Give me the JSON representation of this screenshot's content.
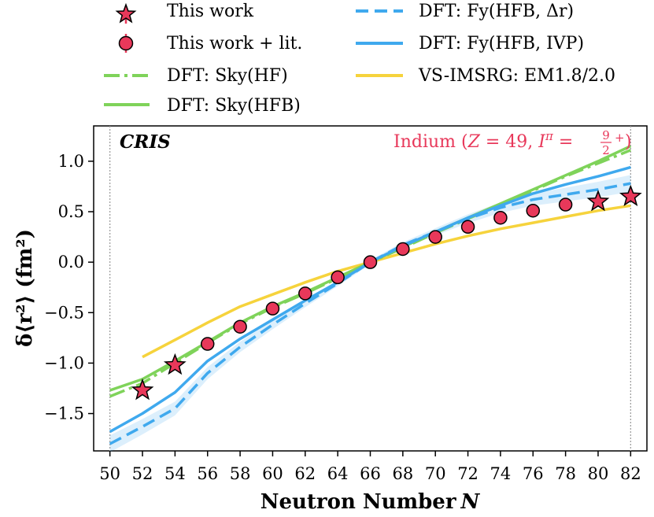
{
  "chart_data": {
    "type": "line",
    "xlabel": "Neutron Number",
    "xlabel_var": "N",
    "ylabel": "δ⟨r²⟩ (fm²)",
    "xlim": [
      49,
      83
    ],
    "ylim": [
      -1.87,
      1.35
    ],
    "x_ticks": [
      50,
      52,
      54,
      56,
      58,
      60,
      62,
      64,
      66,
      68,
      70,
      72,
      74,
      76,
      78,
      80,
      82
    ],
    "y_ticks": [
      -1.5,
      -1.0,
      -0.5,
      0.0,
      0.5,
      1.0
    ],
    "y_tick_labels": [
      "−1.5",
      "−1.0",
      "−0.5",
      "0.0",
      "0.5",
      "1.0"
    ],
    "vertical_reference_lines": [
      50,
      82
    ],
    "annotations": {
      "top_left": "CRIS",
      "top_right_prefix": "Indium (",
      "top_right_z": "Z",
      "top_right_eq": " = 49, ",
      "top_right_i": "I",
      "top_right_pi": "π",
      "top_right_eq2": " = ",
      "top_right_frac_num": "9",
      "top_right_frac_den": "2",
      "top_right_sup": "+",
      "top_right_close": ")"
    },
    "colors": {
      "this_work": "#e8385a",
      "blue": "#3fa9ee",
      "green": "#7fd35a",
      "yellow": "#f6d33c"
    },
    "series": [
      {
        "name": "DFT: Sky(HF)",
        "style": "dashdot",
        "color": "#7fd35a",
        "x": [
          50,
          52,
          54,
          56,
          58,
          60,
          62,
          64,
          66,
          68,
          70,
          72,
          74,
          76,
          78,
          80,
          82
        ],
        "y": [
          -1.33,
          -1.2,
          -1.0,
          -0.8,
          -0.61,
          -0.45,
          -0.31,
          -0.16,
          0.0,
          0.14,
          0.29,
          0.43,
          0.57,
          0.71,
          0.85,
          0.98,
          1.11
        ]
      },
      {
        "name": "DFT: Sky(HFB)",
        "style": "solid",
        "color": "#7fd35a",
        "x": [
          50,
          52,
          54,
          56,
          58,
          60,
          62,
          64,
          66,
          68,
          70,
          72,
          74,
          76,
          78,
          80,
          82
        ],
        "y": [
          -1.27,
          -1.16,
          -0.98,
          -0.79,
          -0.6,
          -0.44,
          -0.3,
          -0.15,
          0.0,
          0.15,
          0.3,
          0.44,
          0.58,
          0.72,
          0.86,
          1.0,
          1.15
        ]
      },
      {
        "name": "DFT: Fy(HFB, Δr)",
        "style": "dashed",
        "color": "#3fa9ee",
        "x": [
          50,
          52,
          54,
          56,
          58,
          60,
          62,
          64,
          66,
          68,
          70,
          72,
          74,
          76,
          78,
          80,
          82
        ],
        "y": [
          -1.8,
          -1.63,
          -1.45,
          -1.1,
          -0.84,
          -0.62,
          -0.41,
          -0.21,
          0.0,
          0.17,
          0.3,
          0.43,
          0.54,
          0.62,
          0.67,
          0.72,
          0.78
        ]
      },
      {
        "name": "DFT: Fy(HFB, IVP)",
        "style": "solid",
        "color": "#3fa9ee",
        "x": [
          50,
          52,
          54,
          56,
          58,
          60,
          62,
          64,
          66,
          68,
          70,
          72,
          74,
          76,
          78,
          80,
          82
        ],
        "y": [
          -1.68,
          -1.5,
          -1.29,
          -0.98,
          -0.76,
          -0.57,
          -0.38,
          -0.2,
          0.0,
          0.16,
          0.3,
          0.44,
          0.56,
          0.68,
          0.77,
          0.85,
          0.94
        ]
      },
      {
        "name": "VS-IMSRG: EM1.8/2.0",
        "style": "solid",
        "color": "#f6d33c",
        "x": [
          52,
          54,
          56,
          58,
          60,
          62,
          64,
          66,
          68,
          70,
          72,
          74,
          76,
          78,
          80,
          82
        ],
        "y": [
          -0.94,
          -0.77,
          -0.6,
          -0.44,
          -0.32,
          -0.2,
          -0.09,
          0.0,
          0.09,
          0.18,
          0.26,
          0.33,
          0.39,
          0.45,
          0.51,
          0.56
        ]
      }
    ],
    "points": [
      {
        "name": "This work",
        "marker": "star",
        "x": [
          52,
          54,
          80,
          82
        ],
        "y": [
          -1.27,
          -1.02,
          0.6,
          0.65
        ]
      },
      {
        "name": "This work + lit.",
        "marker": "circle",
        "x": [
          56,
          58,
          60,
          62,
          64,
          66,
          68,
          70,
          72,
          74,
          76,
          78
        ],
        "y": [
          -0.81,
          -0.64,
          -0.46,
          -0.31,
          -0.15,
          0.0,
          0.13,
          0.25,
          0.35,
          0.44,
          0.51,
          0.57
        ]
      }
    ],
    "legend": [
      {
        "label": "This work",
        "kind": "star"
      },
      {
        "label": "This work + lit.",
        "kind": "circle"
      },
      {
        "label": "DFT: Sky(HF)",
        "kind": "green-dashdot"
      },
      {
        "label": "DFT: Sky(HFB)",
        "kind": "green-solid"
      },
      {
        "label": "DFT: Fy(HFB, Δr)",
        "kind": "blue-dashed"
      },
      {
        "label": "DFT: Fy(HFB, IVP)",
        "kind": "blue-solid"
      },
      {
        "label": "VS-IMSRG: EM1.8/2.0",
        "kind": "yellow-solid"
      }
    ]
  }
}
